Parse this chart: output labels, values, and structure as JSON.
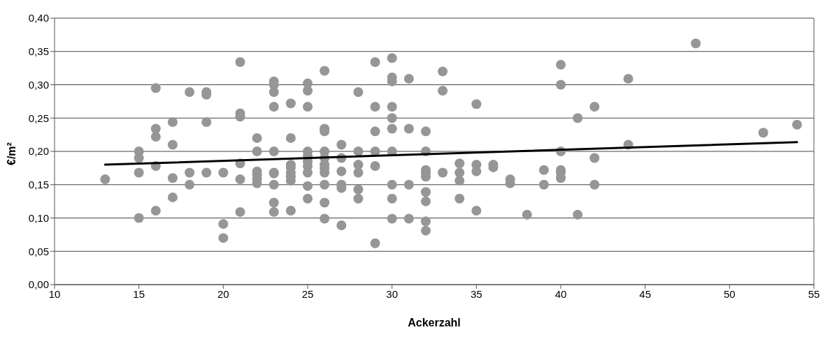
{
  "chart_data": {
    "type": "scatter",
    "xlabel": "Ackerzahl",
    "ylabel": "€/m²",
    "grid": "y",
    "marker": "circle",
    "xlim": [
      10,
      55
    ],
    "xticks": [
      10,
      15,
      20,
      25,
      30,
      35,
      40,
      45,
      50,
      55
    ],
    "ylim": [
      0,
      0.4
    ],
    "yticks": [
      {
        "value": 0,
        "label": "0,00"
      },
      {
        "value": 0.05,
        "label": "0,05"
      },
      {
        "value": 0.1,
        "label": "0,10"
      },
      {
        "value": 0.15,
        "label": "0,15"
      },
      {
        "value": 0.2,
        "label": "0,20"
      },
      {
        "value": 0.25,
        "label": "0,25"
      },
      {
        "value": 0.3,
        "label": "0,30"
      },
      {
        "value": 0.35,
        "label": "0,35"
      },
      {
        "value": 0.4,
        "label": "0,40"
      }
    ],
    "series": [
      {
        "color": "#969696",
        "x": [
          13,
          15,
          15,
          15,
          15,
          16,
          16,
          16,
          16,
          16,
          17,
          17,
          17,
          17,
          18,
          18,
          18,
          19,
          19,
          19,
          19,
          20,
          20,
          20,
          21,
          21,
          21,
          21,
          21,
          21,
          22,
          22,
          22,
          22,
          22,
          22,
          23,
          23,
          23,
          23,
          23,
          23,
          23,
          23,
          23,
          23,
          24,
          24,
          24,
          24,
          24,
          24,
          24,
          24,
          25,
          25,
          25,
          25,
          25,
          25,
          25,
          25,
          25,
          25,
          26,
          26,
          26,
          26,
          26,
          26,
          26,
          26,
          26,
          26,
          26,
          27,
          27,
          27,
          27,
          27,
          27,
          28,
          28,
          28,
          28,
          28,
          28,
          29,
          29,
          29,
          29,
          29,
          29,
          30,
          30,
          30,
          30,
          30,
          30,
          30,
          30,
          30,
          30,
          31,
          31,
          31,
          31,
          32,
          32,
          32,
          32,
          32,
          32,
          32,
          32,
          32,
          33,
          33,
          33,
          34,
          34,
          34,
          34,
          35,
          35,
          35,
          35,
          36,
          36,
          37,
          37,
          38,
          39,
          39,
          40,
          40,
          40,
          40,
          40,
          40,
          41,
          41,
          42,
          42,
          42,
          44,
          44,
          48,
          52,
          54
        ],
        "values": [
          0.158,
          0.2,
          0.19,
          0.168,
          0.1,
          0.295,
          0.234,
          0.222,
          0.178,
          0.111,
          0.244,
          0.21,
          0.16,
          0.131,
          0.289,
          0.168,
          0.15,
          0.289,
          0.285,
          0.244,
          0.168,
          0.168,
          0.091,
          0.07,
          0.334,
          0.257,
          0.252,
          0.182,
          0.158,
          0.109,
          0.22,
          0.2,
          0.17,
          0.165,
          0.158,
          0.152,
          0.305,
          0.3,
          0.289,
          0.267,
          0.2,
          0.168,
          0.167,
          0.15,
          0.123,
          0.109,
          0.272,
          0.22,
          0.18,
          0.176,
          0.168,
          0.162,
          0.156,
          0.111,
          0.302,
          0.291,
          0.267,
          0.2,
          0.193,
          0.185,
          0.178,
          0.168,
          0.148,
          0.129,
          0.321,
          0.234,
          0.23,
          0.2,
          0.19,
          0.18,
          0.175,
          0.168,
          0.15,
          0.123,
          0.099,
          0.21,
          0.19,
          0.17,
          0.15,
          0.145,
          0.089,
          0.289,
          0.2,
          0.18,
          0.168,
          0.143,
          0.129,
          0.334,
          0.267,
          0.23,
          0.2,
          0.178,
          0.062,
          0.34,
          0.311,
          0.305,
          0.267,
          0.25,
          0.234,
          0.2,
          0.15,
          0.129,
          0.099,
          0.309,
          0.234,
          0.15,
          0.099,
          0.23,
          0.2,
          0.172,
          0.168,
          0.162,
          0.139,
          0.125,
          0.095,
          0.081,
          0.32,
          0.291,
          0.168,
          0.182,
          0.168,
          0.156,
          0.129,
          0.271,
          0.18,
          0.17,
          0.111,
          0.18,
          0.176,
          0.158,
          0.152,
          0.105,
          0.172,
          0.15,
          0.33,
          0.3,
          0.2,
          0.172,
          0.168,
          0.16,
          0.25,
          0.105,
          0.267,
          0.19,
          0.15,
          0.309,
          0.21,
          0.362,
          0.228,
          0.24
        ]
      },
      {
        "type": "line",
        "marker": "none",
        "color": "#000000",
        "x": [
          13,
          54
        ],
        "values": [
          0.18,
          0.214
        ]
      }
    ]
  }
}
